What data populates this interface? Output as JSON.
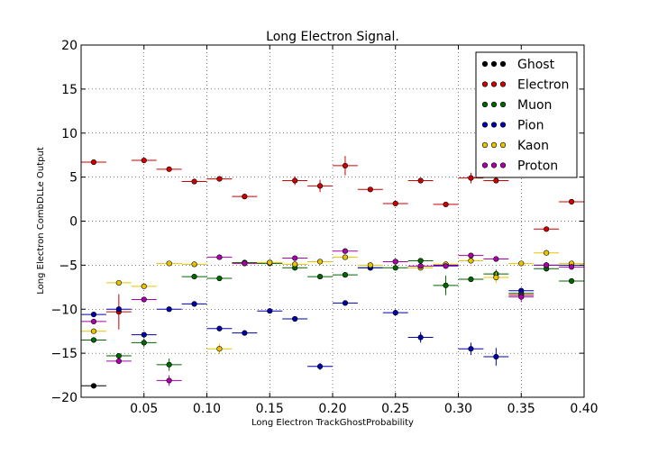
{
  "chart_data": {
    "type": "scatter",
    "title": "Long Electron Signal.",
    "xlabel": "Long Electron TrackGhostProbability",
    "ylabel": "Long Electron CombDLLe Output",
    "xlim": [
      0.0,
      0.4
    ],
    "ylim": [
      -20,
      20
    ],
    "x_ticks": [
      0.05,
      0.1,
      0.15,
      0.2,
      0.25,
      0.3,
      0.35,
      0.4
    ],
    "x_tick_labels": [
      "0.05",
      "0.10",
      "0.15",
      "0.20",
      "0.25",
      "0.30",
      "0.35",
      "0.40"
    ],
    "y_ticks": [
      -20,
      -15,
      -10,
      -5,
      0,
      5,
      10,
      15,
      20
    ],
    "y_tick_labels": [
      "−20",
      "−15",
      "−10",
      "−5",
      "0",
      "5",
      "10",
      "15",
      "20"
    ],
    "grid": true,
    "legend_position": "top-right",
    "x_bin_halfwidth": 0.01,
    "series": [
      {
        "name": "Ghost",
        "color": "#000000",
        "points": [
          {
            "x": 0.01,
            "y": -18.7,
            "yerr": 0.15
          }
        ]
      },
      {
        "name": "Electron",
        "color": "#cc0000",
        "points": [
          {
            "x": 0.01,
            "y": 6.7,
            "yerr": 0.15
          },
          {
            "x": 0.03,
            "y": -10.3,
            "yerr": 2.0
          },
          {
            "x": 0.05,
            "y": 6.9,
            "yerr": 0.2
          },
          {
            "x": 0.07,
            "y": 5.9,
            "yerr": 0.2
          },
          {
            "x": 0.09,
            "y": 4.5,
            "yerr": 0.2
          },
          {
            "x": 0.11,
            "y": 4.8,
            "yerr": 0.2
          },
          {
            "x": 0.13,
            "y": 2.8,
            "yerr": 0.3
          },
          {
            "x": 0.15,
            "y": -4.7,
            "yerr": 0.2
          },
          {
            "x": 0.17,
            "y": 4.6,
            "yerr": 0.5
          },
          {
            "x": 0.19,
            "y": 4.0,
            "yerr": 0.7
          },
          {
            "x": 0.21,
            "y": 6.3,
            "yerr": 1.1
          },
          {
            "x": 0.23,
            "y": 3.6,
            "yerr": 0.2
          },
          {
            "x": 0.25,
            "y": 2.0,
            "yerr": 0.2
          },
          {
            "x": 0.27,
            "y": 4.6,
            "yerr": 0.3
          },
          {
            "x": 0.29,
            "y": 1.9,
            "yerr": 0.2
          },
          {
            "x": 0.31,
            "y": 4.9,
            "yerr": 0.6
          },
          {
            "x": 0.33,
            "y": 4.6,
            "yerr": 0.2
          },
          {
            "x": 0.35,
            "y": -8.4,
            "yerr": 0.5
          },
          {
            "x": 0.37,
            "y": -0.9,
            "yerr": 0.2
          },
          {
            "x": 0.39,
            "y": 2.2,
            "yerr": 0.2
          }
        ]
      },
      {
        "name": "Muon",
        "color": "#006600",
        "points": [
          {
            "x": 0.01,
            "y": -13.5,
            "yerr": 0.2
          },
          {
            "x": 0.03,
            "y": -15.3,
            "yerr": 0.2
          },
          {
            "x": 0.05,
            "y": -13.8,
            "yerr": 0.5
          },
          {
            "x": 0.07,
            "y": -16.3,
            "yerr": 0.7
          },
          {
            "x": 0.09,
            "y": -6.3,
            "yerr": 0.2
          },
          {
            "x": 0.11,
            "y": -6.5,
            "yerr": 0.2
          },
          {
            "x": 0.13,
            "y": -4.7,
            "yerr": 0.2
          },
          {
            "x": 0.15,
            "y": -4.8,
            "yerr": 0.2
          },
          {
            "x": 0.17,
            "y": -5.3,
            "yerr": 0.2
          },
          {
            "x": 0.19,
            "y": -6.3,
            "yerr": 0.2
          },
          {
            "x": 0.21,
            "y": -6.1,
            "yerr": 0.2
          },
          {
            "x": 0.23,
            "y": -5.3,
            "yerr": 0.2
          },
          {
            "x": 0.25,
            "y": -5.3,
            "yerr": 0.2
          },
          {
            "x": 0.27,
            "y": -4.5,
            "yerr": 0.3
          },
          {
            "x": 0.29,
            "y": -7.3,
            "yerr": 1.1
          },
          {
            "x": 0.31,
            "y": -6.6,
            "yerr": 0.2
          },
          {
            "x": 0.33,
            "y": -6.0,
            "yerr": 0.5
          },
          {
            "x": 0.35,
            "y": -8.2,
            "yerr": 0.4
          },
          {
            "x": 0.37,
            "y": -5.4,
            "yerr": 0.3
          },
          {
            "x": 0.39,
            "y": -6.8,
            "yerr": 0.3
          }
        ]
      },
      {
        "name": "Pion",
        "color": "#0000aa",
        "points": [
          {
            "x": 0.01,
            "y": -10.6,
            "yerr": 0.2
          },
          {
            "x": 0.03,
            "y": -10.0,
            "yerr": 0.3
          },
          {
            "x": 0.05,
            "y": -12.9,
            "yerr": 0.2
          },
          {
            "x": 0.07,
            "y": -10.0,
            "yerr": 0.2
          },
          {
            "x": 0.09,
            "y": -9.4,
            "yerr": 0.2
          },
          {
            "x": 0.11,
            "y": -12.2,
            "yerr": 0.2
          },
          {
            "x": 0.13,
            "y": -12.7,
            "yerr": 0.2
          },
          {
            "x": 0.15,
            "y": -10.2,
            "yerr": 0.2
          },
          {
            "x": 0.17,
            "y": -11.1,
            "yerr": 0.2
          },
          {
            "x": 0.19,
            "y": -16.5,
            "yerr": 0.4
          },
          {
            "x": 0.21,
            "y": -9.3,
            "yerr": 0.2
          },
          {
            "x": 0.23,
            "y": -5.3,
            "yerr": 0.2
          },
          {
            "x": 0.25,
            "y": -10.4,
            "yerr": 0.3
          },
          {
            "x": 0.27,
            "y": -13.2,
            "yerr": 0.6
          },
          {
            "x": 0.29,
            "y": -5.0,
            "yerr": 0.2
          },
          {
            "x": 0.31,
            "y": -14.5,
            "yerr": 0.7
          },
          {
            "x": 0.33,
            "y": -15.4,
            "yerr": 1.0
          },
          {
            "x": 0.35,
            "y": -7.9,
            "yerr": 0.3
          },
          {
            "x": 0.37,
            "y": -5.0,
            "yerr": 0.3
          },
          {
            "x": 0.39,
            "y": -5.0,
            "yerr": 0.3
          }
        ]
      },
      {
        "name": "Kaon",
        "color": "#e8c400",
        "points": [
          {
            "x": 0.01,
            "y": -12.5,
            "yerr": 0.2
          },
          {
            "x": 0.03,
            "y": -7.0,
            "yerr": 0.2
          },
          {
            "x": 0.05,
            "y": -7.4,
            "yerr": 0.2
          },
          {
            "x": 0.07,
            "y": -4.8,
            "yerr": 0.2
          },
          {
            "x": 0.09,
            "y": -4.9,
            "yerr": 0.2
          },
          {
            "x": 0.11,
            "y": -14.5,
            "yerr": 0.6
          },
          {
            "x": 0.13,
            "y": -4.8,
            "yerr": 0.2
          },
          {
            "x": 0.15,
            "y": -4.7,
            "yerr": 0.2
          },
          {
            "x": 0.17,
            "y": -4.9,
            "yerr": 0.2
          },
          {
            "x": 0.19,
            "y": -4.6,
            "yerr": 0.2
          },
          {
            "x": 0.21,
            "y": -4.1,
            "yerr": 0.2
          },
          {
            "x": 0.23,
            "y": -5.0,
            "yerr": 0.2
          },
          {
            "x": 0.25,
            "y": -4.6,
            "yerr": 0.2
          },
          {
            "x": 0.27,
            "y": -5.3,
            "yerr": 0.2
          },
          {
            "x": 0.29,
            "y": -4.9,
            "yerr": 0.2
          },
          {
            "x": 0.31,
            "y": -4.5,
            "yerr": 0.2
          },
          {
            "x": 0.33,
            "y": -6.4,
            "yerr": 0.6
          },
          {
            "x": 0.35,
            "y": -4.8,
            "yerr": 0.2
          },
          {
            "x": 0.37,
            "y": -3.6,
            "yerr": 0.3
          },
          {
            "x": 0.39,
            "y": -4.8,
            "yerr": 0.3
          }
        ]
      },
      {
        "name": "Proton",
        "color": "#aa00aa",
        "points": [
          {
            "x": 0.01,
            "y": -11.4,
            "yerr": 0.2
          },
          {
            "x": 0.03,
            "y": -15.9,
            "yerr": 0.3
          },
          {
            "x": 0.05,
            "y": -8.9,
            "yerr": 0.2
          },
          {
            "x": 0.07,
            "y": -18.1,
            "yerr": 0.6
          },
          {
            "x": 0.11,
            "y": -4.1,
            "yerr": 0.2
          },
          {
            "x": 0.13,
            "y": -4.8,
            "yerr": 0.2
          },
          {
            "x": 0.17,
            "y": -4.2,
            "yerr": 0.2
          },
          {
            "x": 0.21,
            "y": -3.4,
            "yerr": 0.2
          },
          {
            "x": 0.25,
            "y": -4.6,
            "yerr": 0.2
          },
          {
            "x": 0.27,
            "y": -5.1,
            "yerr": 0.2
          },
          {
            "x": 0.29,
            "y": -5.1,
            "yerr": 0.2
          },
          {
            "x": 0.31,
            "y": -3.9,
            "yerr": 0.2
          },
          {
            "x": 0.33,
            "y": -4.3,
            "yerr": 0.2
          },
          {
            "x": 0.35,
            "y": -8.6,
            "yerr": 0.6
          },
          {
            "x": 0.37,
            "y": -5.0,
            "yerr": 0.3
          },
          {
            "x": 0.39,
            "y": -5.2,
            "yerr": 0.2
          }
        ]
      }
    ]
  }
}
